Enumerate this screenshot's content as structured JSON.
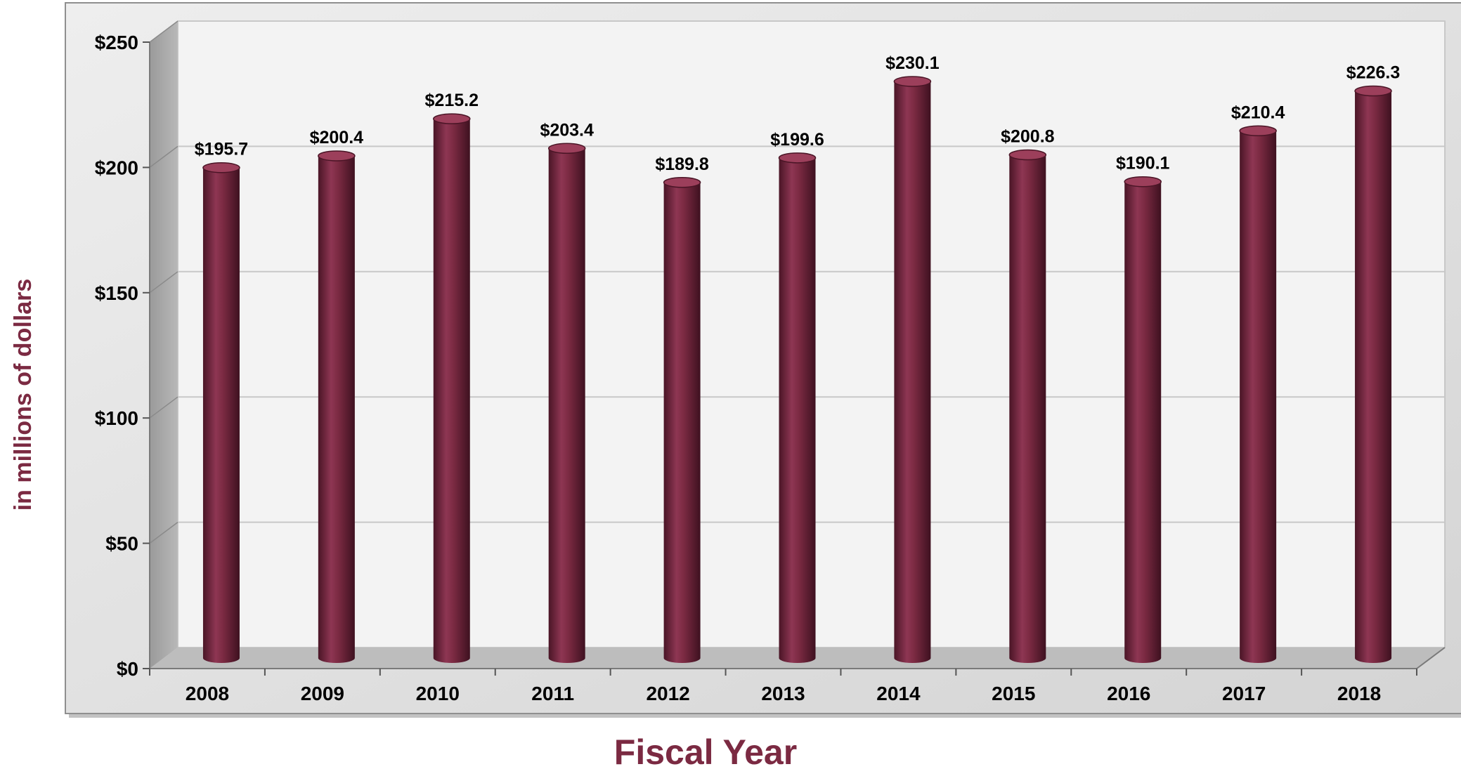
{
  "chart_data": {
    "type": "bar",
    "title": "",
    "xlabel": "Fiscal Year",
    "ylabel": "in millions of dollars",
    "categories": [
      "2008",
      "2009",
      "2010",
      "2011",
      "2012",
      "2013",
      "2014",
      "2015",
      "2016",
      "2017",
      "2018"
    ],
    "series": [
      {
        "values": [
          195.7,
          200.4,
          215.2,
          203.4,
          189.8,
          199.6,
          230.1,
          200.8,
          190.1,
          210.4,
          226.3
        ],
        "data_labels": [
          "$195.7",
          "$200.4",
          "$215.2",
          "$203.4",
          "$189.8",
          "$199.6",
          "$230.1",
          "$200.8",
          "$190.1",
          "$210.4",
          "$226.3"
        ]
      }
    ],
    "ylim": [
      0,
      250
    ],
    "yticks": [
      0,
      50,
      100,
      150,
      200,
      250
    ],
    "ytick_labels": [
      "$0",
      "$50",
      "$100",
      "$150",
      "$200",
      "$250"
    ],
    "grid": true,
    "legend": "none",
    "bar_shape": "cylinder",
    "colors": {
      "bar": "#7b2a42",
      "bar_dark": "#4a1526",
      "bar_light": "#9c3f5b",
      "axis_title": "#7b2a42",
      "plot_background": "#f3f3f3",
      "side_wall": "#a8a8a8",
      "floor": "#bdbdbd",
      "outer_frame": "#e0e0e0",
      "gridline": "#c8c8c8"
    }
  }
}
